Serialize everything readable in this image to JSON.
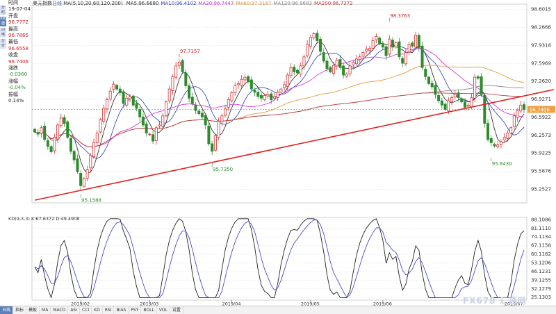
{
  "title": "美元指数",
  "period_tag": "日线",
  "ma_params": "MA(5,10,20,60,120,200)",
  "ma_values": [
    {
      "label": "MA5:96.6680",
      "color": "#333333"
    },
    {
      "label": "MA10:96.4102",
      "color": "#3b4fc4"
    },
    {
      "label": "MA20:96.7447",
      "color": "#d23ad2"
    },
    {
      "label": "MA60:97.3187",
      "color": "#e79a3a"
    },
    {
      "label": "MA120:96.9683",
      "color": "#8a8a8a"
    },
    {
      "label": "MA200:96.7372",
      "color": "#c44040"
    }
  ],
  "ohlc_panel": [
    {
      "label": "时间",
      "value": "19-07-04"
    },
    {
      "label": "开盘",
      "value": "96.7772"
    },
    {
      "label": "最高",
      "value": "96.7865"
    },
    {
      "label": "最低",
      "value": "96.6558"
    },
    {
      "label": "收盘",
      "value": "96.7406"
    },
    {
      "label": "涨跌",
      "value": "-0.0360"
    },
    {
      "label": "涨幅",
      "value": "-0.04%"
    },
    {
      "label": "振幅",
      "value": "0.14%"
    }
  ],
  "side_tabs": [
    "分时图",
    "K线图",
    "闪电图",
    "分价表"
  ],
  "toolbar": [
    "日线",
    "指标",
    "模板",
    "MA",
    "MACD",
    "ASI",
    "CCI",
    "KD",
    "RSI",
    "BIAS",
    "PSY",
    "BOLL",
    "VOL",
    "设置"
  ],
  "kd_legend": "KD(9,3,3) K:67.6372 D:49.4908",
  "watermark": "FX678 汇通网",
  "colors": {
    "up": "#d23232",
    "down": "#2e8b2e",
    "grid": "#dddddd",
    "current": "#f0a040"
  },
  "chart_data": [
    {
      "type": "candlestick",
      "title": "美元指数",
      "yticks": [
        "95.2527",
        "95.5876",
        "95.9225",
        "96.2573",
        "96.5922",
        "96.9271",
        "97.2620",
        "97.5969",
        "97.9318",
        "98.2666",
        "98.6015"
      ],
      "ylim": [
        95.0,
        98.7
      ],
      "xticks": [
        "2019/02",
        "2019/03",
        "2019/04",
        "2019/05",
        "2019/06",
        "2019/07"
      ],
      "current_price": "96.7406",
      "annotations": [
        {
          "label": "97.7157",
          "index": 44,
          "value": 97.7157
        },
        {
          "label": "95.7350",
          "index": 54,
          "value": 95.735
        },
        {
          "label": "95.1588",
          "index": 14,
          "value": 95.1588
        },
        {
          "label": "98.3763",
          "index": 108,
          "value": 98.3763
        },
        {
          "label": "95.8430",
          "index": 139,
          "value": 95.843
        }
      ],
      "close": [
        96.32,
        96.28,
        96.4,
        96.18,
        96.05,
        95.95,
        96.22,
        96.45,
        96.58,
        96.48,
        96.22,
        95.96,
        95.8,
        95.58,
        95.32,
        95.45,
        95.62,
        95.88,
        96.12,
        96.3,
        96.55,
        96.76,
        96.92,
        97.08,
        97.21,
        97.12,
        97.05,
        96.85,
        96.95,
        96.98,
        96.82,
        96.76,
        96.6,
        96.45,
        96.3,
        96.28,
        96.15,
        96.4,
        96.45,
        96.62,
        96.88,
        97.12,
        97.35,
        97.55,
        97.62,
        97.44,
        97.18,
        96.95,
        96.85,
        96.72,
        96.66,
        96.6,
        96.45,
        96.1,
        95.96,
        96.25,
        96.52,
        96.62,
        96.75,
        96.92,
        97.05,
        97.18,
        97.22,
        97.3,
        97.34,
        97.26,
        97.12,
        97.06,
        96.98,
        96.95,
        97.0,
        97.02,
        96.92,
        96.98,
        97.06,
        97.12,
        97.2,
        97.38,
        97.52,
        97.44,
        97.42,
        97.55,
        97.72,
        97.95,
        98.08,
        98.15,
        98.02,
        97.82,
        97.64,
        97.5,
        97.44,
        97.56,
        97.66,
        97.52,
        97.38,
        97.4,
        97.55,
        97.62,
        97.68,
        97.72,
        97.8,
        97.86,
        97.88,
        98.02,
        98.1,
        97.96,
        97.9,
        97.74,
        98.05,
        97.9,
        97.98,
        97.72,
        97.6,
        97.8,
        97.95,
        97.92,
        98.12,
        97.9,
        97.52,
        97.35,
        97.22,
        97.16,
        97.02,
        96.9,
        96.82,
        96.74,
        96.9,
        96.96,
        97.02,
        96.96,
        96.88,
        96.78,
        96.82,
        96.96,
        97.34,
        97.32,
        97.02,
        96.48,
        96.18,
        96.12,
        96.06,
        96.08,
        96.14,
        96.22,
        96.3,
        96.4,
        96.62,
        96.72,
        96.82,
        96.74
      ],
      "ma_series": [
        "MA5",
        "MA10",
        "MA20",
        "MA60",
        "MA120",
        "MA200"
      ],
      "trendline": [
        {
          "index": 0,
          "value": 95.05
        },
        {
          "index": 156,
          "value": 97.11
        }
      ]
    },
    {
      "type": "line",
      "title": "KD(9,3,3)",
      "series": [
        {
          "name": "K",
          "values": "stochastic K of close"
        },
        {
          "name": "D",
          "values": "stochastic D of close"
        }
      ],
      "yticks": [
        "88.1086",
        "81.1110",
        "74.1134",
        "67.1158",
        "60.1182",
        "53.1206",
        "46.1231",
        "39.1255",
        "32.1279",
        "25.1303"
      ],
      "ylim": [
        23.0,
        90.0
      ]
    }
  ]
}
